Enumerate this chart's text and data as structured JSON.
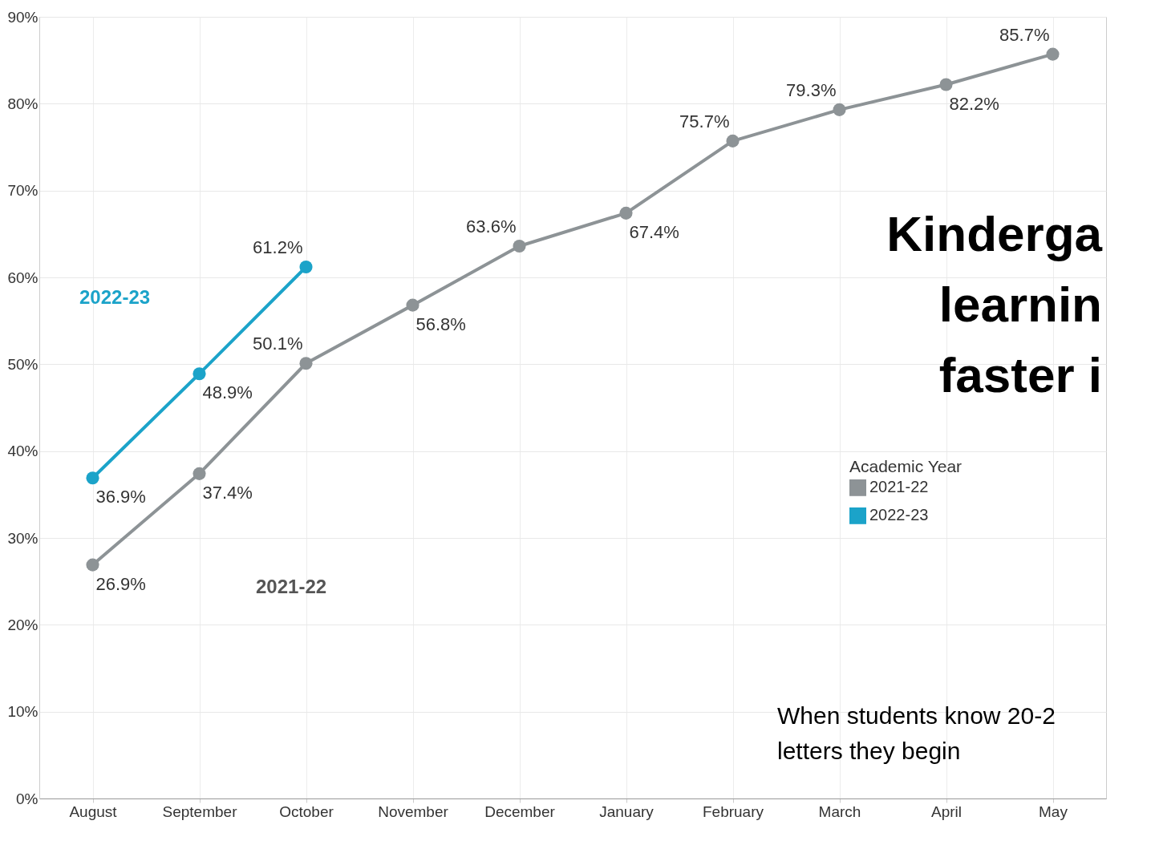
{
  "chart_data": {
    "type": "line",
    "categories": [
      "August",
      "September",
      "October",
      "November",
      "December",
      "January",
      "February",
      "March",
      "April",
      "May"
    ],
    "series": [
      {
        "name": "2021-22",
        "color": "#8d9396",
        "values": [
          26.9,
          37.4,
          50.1,
          56.8,
          63.6,
          67.4,
          75.7,
          79.3,
          82.2,
          85.7
        ],
        "value_labels": [
          "26.9%",
          "37.4%",
          "50.1%",
          "56.8%",
          "63.6%",
          "67.4%",
          "75.7%",
          "79.3%",
          "82.2%",
          "85.7%"
        ]
      },
      {
        "name": "2022-23",
        "color": "#1ba3c9",
        "values": [
          36.9,
          48.9,
          61.2,
          null,
          null,
          null,
          null,
          null,
          null,
          null
        ],
        "value_labels": [
          "36.9%",
          "48.9%",
          "61.2%",
          null,
          null,
          null,
          null,
          null,
          null,
          null
        ]
      }
    ],
    "ylim": [
      0,
      90
    ],
    "yticks": [
      {
        "value": 0,
        "label": "0%"
      },
      {
        "value": 10,
        "label": "10%"
      },
      {
        "value": 20,
        "label": "20%"
      },
      {
        "value": 30,
        "label": "30%"
      },
      {
        "value": 40,
        "label": "40%"
      },
      {
        "value": 50,
        "label": "50%"
      },
      {
        "value": 60,
        "label": "60%"
      },
      {
        "value": 70,
        "label": "70%"
      },
      {
        "value": 80,
        "label": "80%"
      },
      {
        "value": 90,
        "label": "90%"
      }
    ],
    "grid": true,
    "marker": "circle",
    "line_style": "solid",
    "legend": "right",
    "legend_title": "Academic Year",
    "annotations": [
      "2022-23",
      "2021-22",
      "Kinderga",
      "learnin",
      "faster i",
      "When students know 20-2",
      "letters they begin"
    ]
  }
}
